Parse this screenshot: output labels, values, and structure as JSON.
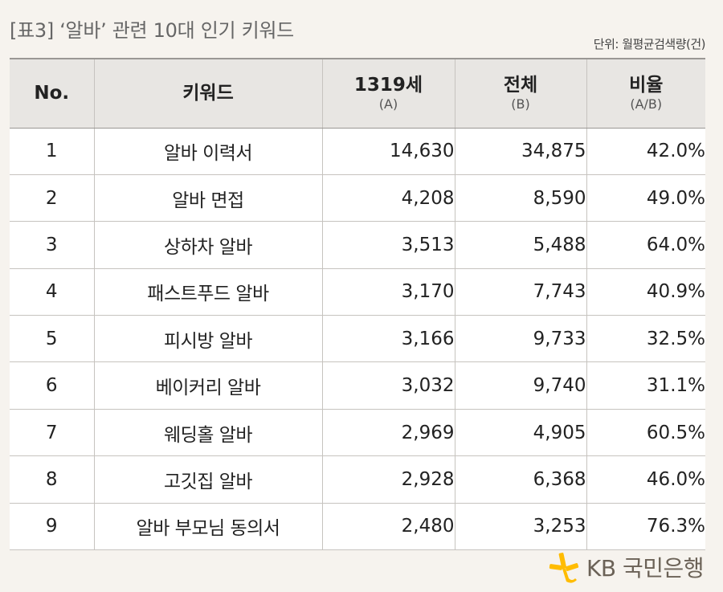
{
  "title": "[표3] ‘알바’ 관련 10대 인기 키워드",
  "unit": "단위: 월평균검색량(건)",
  "table": {
    "headers": [
      {
        "main": "No.",
        "sub": ""
      },
      {
        "main": "키워드",
        "sub": ""
      },
      {
        "main": "1319세",
        "sub": "(A)"
      },
      {
        "main": "전체",
        "sub": "(B)"
      },
      {
        "main": "비율",
        "sub": "(A/B)"
      }
    ],
    "rows": [
      {
        "no": "1",
        "keyword": "알바 이력서",
        "teen": "14,630",
        "total": "34,875",
        "ratio": "42.0%"
      },
      {
        "no": "2",
        "keyword": "알바 면접",
        "teen": "4,208",
        "total": "8,590",
        "ratio": "49.0%"
      },
      {
        "no": "3",
        "keyword": "상하차 알바",
        "teen": "3,513",
        "total": "5,488",
        "ratio": "64.0%"
      },
      {
        "no": "4",
        "keyword": "패스트푸드 알바",
        "teen": "3,170",
        "total": "7,743",
        "ratio": "40.9%"
      },
      {
        "no": "5",
        "keyword": "피시방 알바",
        "teen": "3,166",
        "total": "9,733",
        "ratio": "32.5%"
      },
      {
        "no": "6",
        "keyword": "베이커리 알바",
        "teen": "3,032",
        "total": "9,740",
        "ratio": "31.1%"
      },
      {
        "no": "7",
        "keyword": "웨딩홀 알바",
        "teen": "2,969",
        "total": "4,905",
        "ratio": "60.5%"
      },
      {
        "no": "8",
        "keyword": "고깃집 알바",
        "teen": "2,928",
        "total": "6,368",
        "ratio": "46.0%"
      },
      {
        "no": "9",
        "keyword": "알바 부모님 동의서",
        "teen": "2,480",
        "total": "3,253",
        "ratio": "76.3%"
      }
    ]
  },
  "logo": {
    "text": "KB 국민은행",
    "icon": "kb-star-icon",
    "color": "#ffbc00"
  },
  "colors": {
    "background": "#f6f3ee",
    "header_background": "#e8e6e3",
    "row_background": "#ffffff"
  }
}
